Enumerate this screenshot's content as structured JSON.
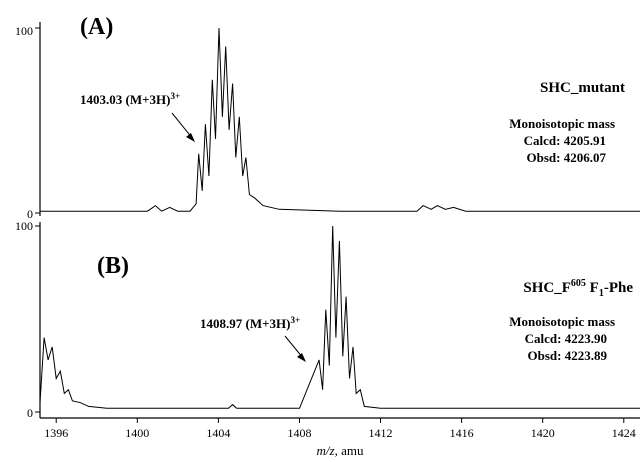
{
  "chart_data": {
    "type": "line",
    "xlabel": "m/z, amu",
    "xlim": [
      1395.2,
      1424.8
    ],
    "x_ticks": [
      "1396",
      "1400",
      "1404",
      "1408",
      "1412",
      "1416",
      "1420",
      "1424"
    ],
    "panels": [
      {
        "letter": "(A)",
        "name": "SHC_mutant",
        "ylim": [
          0,
          100
        ],
        "y_ticks": [
          "0",
          "100"
        ],
        "peak_label": "1403.03 (M+3H)",
        "peak_label_sup": "3+",
        "mono_title": "Monoisotopic mass",
        "calcd": "Calcd: 4205.91",
        "obsd": "Obsd: 4206.07",
        "series": {
          "x": [
            1395.2,
            1398.0,
            1400.5,
            1400.9,
            1401.2,
            1401.6,
            1402.0,
            1402.6,
            1402.9,
            1403.03,
            1403.2,
            1403.36,
            1403.53,
            1403.7,
            1403.86,
            1404.03,
            1404.2,
            1404.36,
            1404.53,
            1404.7,
            1404.86,
            1405.03,
            1405.2,
            1405.36,
            1405.53,
            1405.8,
            1406.2,
            1407.0,
            1410.0,
            1413.8,
            1414.1,
            1414.5,
            1414.8,
            1415.2,
            1415.6,
            1416.2,
            1418.0,
            1421.0,
            1424.8
          ],
          "y": [
            1,
            1,
            1,
            4,
            1,
            3,
            1,
            1,
            5,
            32,
            12,
            48,
            20,
            72,
            40,
            100,
            52,
            90,
            45,
            70,
            30,
            52,
            20,
            30,
            10,
            8,
            4,
            2,
            1,
            1,
            4,
            2,
            4,
            2,
            3,
            1,
            1,
            1,
            1
          ]
        }
      },
      {
        "letter": "(B)",
        "name": "SHC_F",
        "name_sup": "605",
        "name_suffix": " F",
        "name_sub": "1",
        "name_end": "-Phe",
        "ylim": [
          0,
          100
        ],
        "y_ticks": [
          "0",
          "100"
        ],
        "peak_label": "1408.97 (M+3H)",
        "peak_label_sup": "3+",
        "mono_title": "Monoisotopic mass",
        "calcd": "Calcd: 4223.90",
        "obsd": "Obsd: 4223.89",
        "series": {
          "x": [
            1395.2,
            1395.4,
            1395.6,
            1395.8,
            1396.0,
            1396.2,
            1396.4,
            1396.6,
            1396.8,
            1397.2,
            1397.6,
            1398.5,
            1402.0,
            1404.5,
            1404.7,
            1404.9,
            1408.0,
            1408.97,
            1409.14,
            1409.3,
            1409.47,
            1409.64,
            1409.8,
            1409.97,
            1410.14,
            1410.3,
            1410.47,
            1410.64,
            1410.8,
            1411.0,
            1411.2,
            1412.0,
            1416.0,
            1420.0,
            1424.8
          ],
          "y": [
            5,
            40,
            28,
            35,
            18,
            22,
            10,
            12,
            6,
            5,
            3,
            2,
            2,
            2,
            4,
            2,
            2,
            28,
            12,
            55,
            25,
            100,
            40,
            92,
            30,
            62,
            18,
            35,
            10,
            12,
            3,
            2,
            2,
            2,
            2
          ]
        }
      }
    ]
  }
}
